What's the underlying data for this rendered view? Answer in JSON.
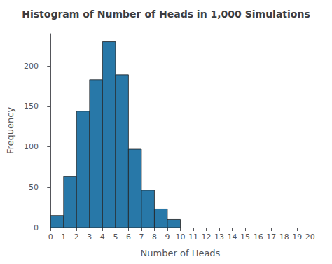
{
  "chart_data": {
    "type": "histogram",
    "title": "Histogram of Number of Heads in 1,000 Simulations",
    "xlabel": "Number of Heads",
    "ylabel": "Frequency",
    "bins": [
      0,
      1,
      2,
      3,
      4,
      5,
      6,
      7,
      8,
      9,
      10
    ],
    "values": [
      15,
      63,
      144,
      183,
      230,
      189,
      97,
      46,
      23,
      10
    ],
    "color": "#2878a8",
    "xlim": [
      -0.5,
      20.5
    ],
    "xticks": [
      0,
      1,
      2,
      3,
      4,
      5,
      6,
      7,
      8,
      9,
      10,
      11,
      12,
      13,
      14,
      15,
      16,
      17,
      18,
      19,
      20
    ],
    "ylim": [
      0,
      240
    ],
    "yticks": [
      0,
      50,
      100,
      150,
      200
    ],
    "grid": false
  }
}
